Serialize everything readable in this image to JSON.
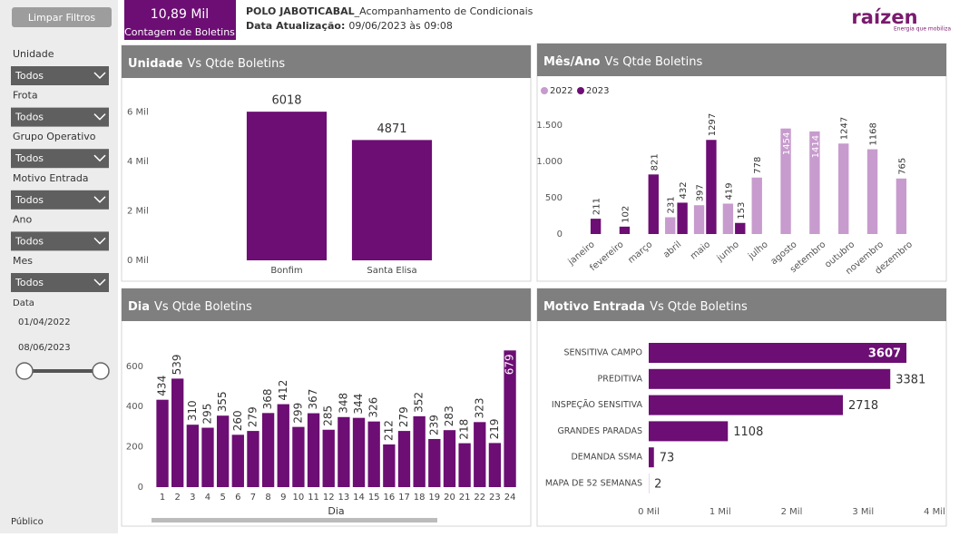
{
  "header": {
    "button": "Limpar Filtros",
    "card_value": "10,89 Mil",
    "card_label": "Contagem de Boletins",
    "title_bold": "POLO JABOTICABAL",
    "title": "_Acompanhamento de Condicionais",
    "update_label": "Data Atualização:",
    "update_value": "09/06/2023 às 09:08",
    "logo": "raízen",
    "logo_tagline": "Energia que mobiliza"
  },
  "filters": [
    {
      "label": "Unidade",
      "value": "Todos"
    },
    {
      "label": "Frota",
      "value": "Todos"
    },
    {
      "label": "Grupo Operativo",
      "value": "Todos"
    },
    {
      "label": "Motivo Entrada",
      "value": "Todos"
    },
    {
      "label": "Ano",
      "value": "Todos"
    },
    {
      "label": "Mes",
      "value": "Todos"
    }
  ],
  "date_filter": {
    "label": "Data",
    "start": "01/04/2022",
    "end": "08/06/2023"
  },
  "footer": "Público",
  "chart_data": [
    {
      "type": "bar",
      "title_field": "Unidade",
      "title": "Vs Qtde Boletins",
      "categories": [
        "Bonfim",
        "Santa Elisa"
      ],
      "values": [
        6018,
        4871
      ],
      "color": "#6c0e73",
      "ylim": [
        0,
        6500
      ],
      "yticks": [
        {
          "value": 0,
          "label": "0 Mil"
        },
        {
          "value": 2000,
          "label": "2 Mil"
        },
        {
          "value": 4000,
          "label": "4 Mil"
        },
        {
          "value": 6000,
          "label": "6 Mil"
        }
      ],
      "grid": false
    },
    {
      "type": "bar",
      "title_field": "Mês/Ano",
      "title": "Vs Qtde Boletins",
      "categories": [
        "janeiro",
        "fevereiro",
        "março",
        "abril",
        "maio",
        "junho",
        "julho",
        "agosto",
        "setembro",
        "outubro",
        "novembro",
        "dezembro"
      ],
      "series": [
        {
          "name": "2022",
          "color": "#c79bcd",
          "values": [
            null,
            null,
            null,
            231,
            397,
            419,
            778,
            1454,
            1414,
            1247,
            1168,
            765
          ]
        },
        {
          "name": "2023",
          "color": "#6c0e73",
          "values": [
            211,
            102,
            821,
            432,
            1297,
            153,
            null,
            null,
            null,
            null,
            null,
            null
          ]
        }
      ],
      "ylim": [
        0,
        1750
      ],
      "yticks": [
        0,
        500,
        {
          "value": 1000,
          "label": "1.000"
        },
        {
          "value": 1500,
          "label": "1.500"
        }
      ],
      "grid": false,
      "legend": "top-left"
    },
    {
      "type": "bar",
      "title_field": "Dia",
      "title": "Vs Qtde Boletins",
      "x_label": "Dia",
      "categories": [
        "1",
        "2",
        "3",
        "4",
        "5",
        "6",
        "7",
        "8",
        "9",
        "10",
        "11",
        "12",
        "13",
        "14",
        "15",
        "16",
        "17",
        "18",
        "19",
        "20",
        "21",
        "22",
        "23",
        "24"
      ],
      "values": [
        434,
        539,
        310,
        295,
        355,
        260,
        279,
        368,
        412,
        299,
        367,
        285,
        348,
        344,
        326,
        212,
        279,
        352,
        239,
        283,
        218,
        323,
        219,
        679
      ],
      "color": "#6c0e73",
      "ylim": [
        0,
        730
      ],
      "yticks": [
        0,
        200,
        400,
        600
      ],
      "grid": false
    },
    {
      "type": "barh",
      "title_field": "Motivo Entrada",
      "title": "Vs Qtde Boletins",
      "categories": [
        "SENSITIVA CAMPO",
        "PREDITIVA",
        "INSPEÇÃO SENSITIVA",
        "GRANDES PARADAS",
        "DEMANDA SSMA",
        "MAPA DE 52 SEMANAS"
      ],
      "values": [
        3607,
        3381,
        2718,
        1108,
        73,
        2
      ],
      "color": "#6c0e73",
      "xlim": [
        0,
        4000
      ],
      "xticks": [
        {
          "value": 0,
          "label": "0 Mil"
        },
        {
          "value": 1000,
          "label": "1 Mil"
        },
        {
          "value": 2000,
          "label": "2 Mil"
        },
        {
          "value": 3000,
          "label": "3 Mil"
        },
        {
          "value": 4000,
          "label": "4 Mil"
        }
      ],
      "grid": false
    }
  ]
}
